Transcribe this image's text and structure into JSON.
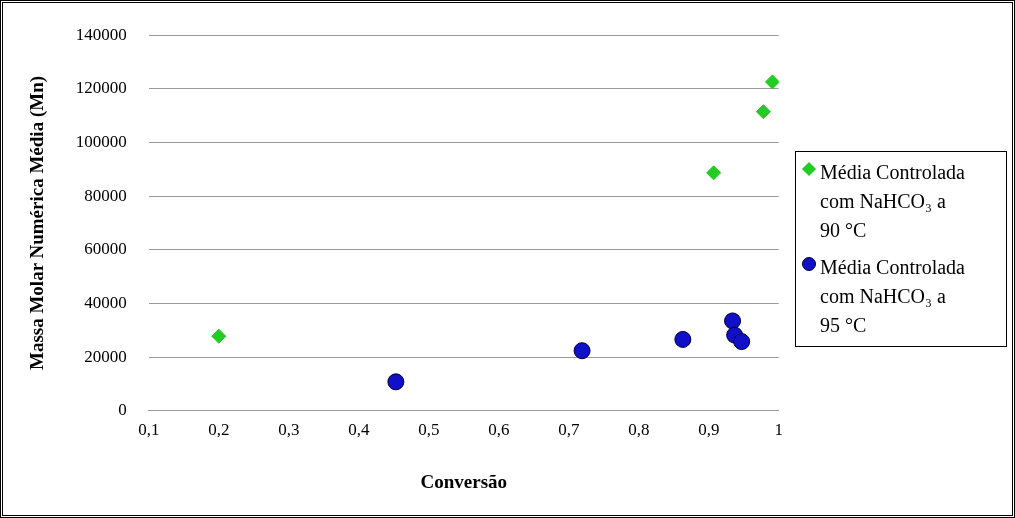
{
  "chart_data": {
    "type": "scatter",
    "xlabel": "Conversão",
    "ylabel": "Massa Molar Numérica Média (Mn)",
    "xlim": [
      0.1,
      1
    ],
    "xticks": [
      {
        "value": 0.1,
        "label": "0,1"
      },
      {
        "value": 0.2,
        "label": "0,2"
      },
      {
        "value": 0.3,
        "label": "0,3"
      },
      {
        "value": 0.4,
        "label": "0,4"
      },
      {
        "value": 0.5,
        "label": "0,5"
      },
      {
        "value": 0.6,
        "label": "0,6"
      },
      {
        "value": 0.7,
        "label": "0,7"
      },
      {
        "value": 0.8,
        "label": "0,8"
      },
      {
        "value": 0.9,
        "label": "0,9"
      },
      {
        "value": 1,
        "label": "1"
      }
    ],
    "ylim": [
      0,
      140000
    ],
    "yticks": [
      0,
      20000,
      40000,
      60000,
      80000,
      100000,
      120000,
      140000
    ],
    "grid": "y",
    "legend": "right",
    "series": [
      {
        "name": "Média Controlada com NaHCO₃ a 90 °C",
        "color": "#22cc22",
        "marker": "diamond",
        "x": [
          0.2,
          0.907,
          0.978,
          0.991
        ],
        "values": [
          27800,
          88700,
          111500,
          122600
        ]
      },
      {
        "name": "Média Controlada com NaHCO₃ a 95 °C",
        "color": "#1010c8",
        "marker": "circle",
        "x": [
          0.453,
          0.719,
          0.863,
          0.934,
          0.937,
          0.947
        ],
        "values": [
          10800,
          22400,
          26600,
          33500,
          28200,
          25800
        ]
      }
    ]
  }
}
